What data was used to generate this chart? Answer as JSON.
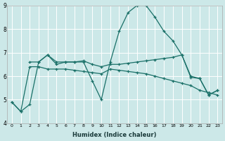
{
  "xlabel": "Humidex (Indice chaleur)",
  "background_color": "#cce8e8",
  "grid_color": "#ffffff",
  "line_color": "#1a7068",
  "xlim": [
    -0.5,
    23.5
  ],
  "ylim": [
    4,
    9
  ],
  "xticks": [
    0,
    1,
    2,
    3,
    4,
    5,
    6,
    7,
    8,
    9,
    10,
    11,
    12,
    13,
    14,
    15,
    16,
    17,
    18,
    19,
    20,
    21,
    22,
    23
  ],
  "yticks": [
    4,
    5,
    6,
    7,
    8,
    9
  ],
  "series1_x": [
    0,
    1,
    2,
    3,
    4,
    5,
    6,
    7,
    8,
    9,
    10,
    11,
    12,
    13,
    14,
    15,
    16,
    17,
    18,
    19,
    20,
    21,
    22,
    23
  ],
  "series1_y": [
    4.9,
    4.5,
    4.8,
    6.6,
    6.9,
    6.5,
    6.6,
    6.6,
    6.6,
    5.8,
    5.0,
    6.6,
    7.9,
    8.7,
    9.0,
    9.0,
    8.5,
    7.9,
    7.5,
    6.9,
    6.0,
    5.9,
    5.2,
    5.4
  ],
  "series2_x": [
    2,
    3,
    4,
    5,
    6,
    7,
    8,
    9,
    10,
    11,
    12,
    13,
    14,
    15,
    16,
    17,
    18,
    19,
    20,
    21,
    22,
    23
  ],
  "series2_y": [
    6.6,
    6.6,
    6.9,
    6.6,
    6.6,
    6.6,
    6.65,
    6.5,
    6.4,
    6.5,
    6.5,
    6.55,
    6.6,
    6.65,
    6.7,
    6.75,
    6.8,
    6.9,
    5.95,
    5.9,
    5.2,
    5.4
  ],
  "series3_x": [
    0,
    1,
    2,
    3,
    4,
    5,
    6,
    7,
    8,
    9,
    10,
    11,
    12,
    13,
    14,
    15,
    16,
    17,
    18,
    19,
    20,
    21,
    22,
    23
  ],
  "series3_y": [
    4.9,
    4.5,
    6.4,
    6.4,
    6.3,
    6.3,
    6.3,
    6.25,
    6.2,
    6.15,
    6.1,
    6.3,
    6.25,
    6.2,
    6.15,
    6.1,
    6.0,
    5.9,
    5.8,
    5.7,
    5.6,
    5.4,
    5.3,
    5.2
  ]
}
